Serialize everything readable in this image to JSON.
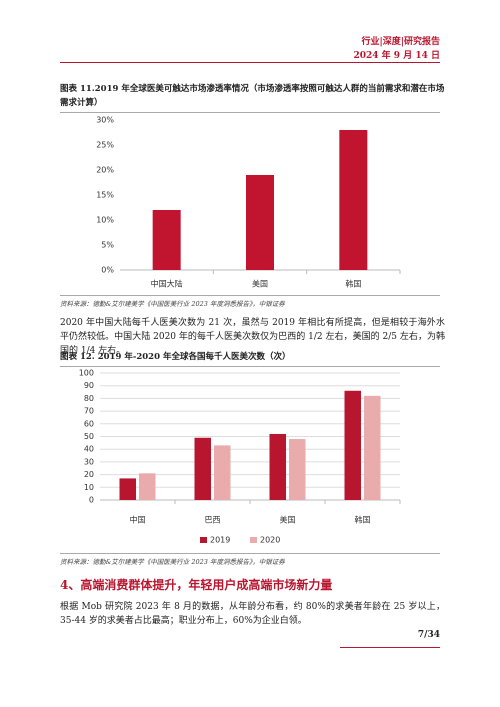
{
  "header": {
    "report_type": "行业|深度|研究报告",
    "date": "2024 年 9 月 14 日"
  },
  "figures": [
    {
      "title": "图表 11.2019 年全球医美可触达市场渗透率情况（市场渗透率按照可触达人群的当前需求和潜在市场需求计算）",
      "source": "资料来源：德勤&艾尔建美学《中国医美行业 2023 年度洞悉报告》，中银证券"
    },
    {
      "title": "图表 12. 2019 年-2020 年全球各国每千人医美次数（次）",
      "source": "资料来源：德勤&艾尔建美学《中国医美行业 2023 年度洞悉报告》，中银证券"
    }
  ],
  "paragraphs": [
    "2020 年中国大陆每千人医美次数为 21 次，虽然与 2019 年相比有所提高，但是相较于海外水平仍然较低。中国大陆 2020 年的每千人医美次数仅为巴西的 1/2 左右，美国的 2/5 左右，为韩国的 1/4 左右。",
    "根据 Mob 研究院 2023 年 8 月的数据，从年龄分布看，约 80%的求美者年龄在 25 岁以上，35-44 岁的求美者占比最高；职业分布上，60%为企业白领。"
  ],
  "section_heading": "4、高端消费群体提升，年轻用户成高端市场新力量",
  "page_number": "7/34",
  "chart_data": [
    {
      "type": "bar",
      "categories": [
        "中国大陆",
        "美国",
        "韩国"
      ],
      "values": [
        12,
        19,
        28
      ],
      "color": "#c0142f",
      "ylim": [
        0,
        30
      ],
      "yticks": [
        {
          "value": 0,
          "label": "0%"
        },
        {
          "value": 5,
          "label": "5%"
        },
        {
          "value": 10,
          "label": "10%"
        },
        {
          "value": 15,
          "label": "15%"
        },
        {
          "value": 20,
          "label": "20%"
        },
        {
          "value": 25,
          "label": "25%"
        },
        {
          "value": 30,
          "label": "30%"
        }
      ],
      "grid": false
    },
    {
      "type": "bar",
      "categories": [
        "中国",
        "巴西",
        "美国",
        "韩国"
      ],
      "series": [
        {
          "name": "2019",
          "color": "#b8162f",
          "values": [
            17,
            49,
            52,
            86
          ]
        },
        {
          "name": "2020",
          "color": "#e9abab",
          "values": [
            21,
            43,
            48,
            82
          ]
        }
      ],
      "ylim": [
        0,
        100
      ],
      "yticks": [
        0,
        10,
        20,
        30,
        40,
        50,
        60,
        70,
        80,
        90,
        100
      ],
      "grid": true,
      "legend": "bottom"
    }
  ]
}
